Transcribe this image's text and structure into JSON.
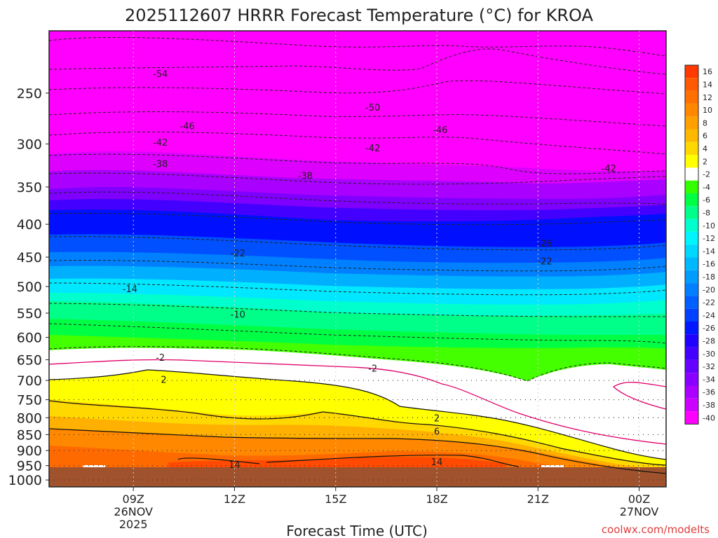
{
  "chart_data": {
    "type": "heatmap",
    "title": "2025112607 HRRR Forecast Temperature (°C) for KROA",
    "xlabel": "Forecast Time (UTC)",
    "ylabel": "",
    "credit": "coolwx.com/modelts",
    "x_range_hours": [
      6.5,
      24.8
    ],
    "x_ticks": [
      {
        "hour": 9,
        "label": "09Z",
        "date": "26NOV",
        "year": "2025"
      },
      {
        "hour": 12,
        "label": "12Z"
      },
      {
        "hour": 15,
        "label": "15Z"
      },
      {
        "hour": 18,
        "label": "18Z"
      },
      {
        "hour": 21,
        "label": "21Z"
      },
      {
        "hour": 24,
        "label": "00Z",
        "date": "27NOV"
      }
    ],
    "y_range_hpa": [
      200,
      1025
    ],
    "y_ticks": [
      250,
      300,
      350,
      400,
      450,
      500,
      550,
      600,
      650,
      700,
      750,
      800,
      850,
      900,
      950,
      1000
    ],
    "surface_pressure_hpa": 978,
    "colorbar_labels": [
      "16",
      "14",
      "12",
      "10",
      "8",
      "6",
      "4",
      "2",
      "-2",
      "-4",
      "-6",
      "-8",
      "-10",
      "-12",
      "-14",
      "-16",
      "-18",
      "-20",
      "-22",
      "-24",
      "-26",
      "-28",
      "-30",
      "-32",
      "-34",
      "-36",
      "-38",
      "-40"
    ],
    "colorbar_colors": [
      "#ff3a00",
      "#ff5a00",
      "#ff7000",
      "#ff8800",
      "#ffa000",
      "#ffb800",
      "#ffd800",
      "#ffff00",
      "#ffffff",
      "#33ff00",
      "#00ff44",
      "#00ff8a",
      "#00ffcc",
      "#00f5ff",
      "#00d8ff",
      "#00b8ff",
      "#009cff",
      "#0080ff",
      "#0060ff",
      "#0040ff",
      "#0018ff",
      "#2000ff",
      "#4400ff",
      "#6600ff",
      "#8800ff",
      "#aa00ff",
      "#cc00ff",
      "#ff00ff"
    ],
    "pressure_profiles": [
      {
        "hpa": 250,
        "temps": [
          -53,
          -53,
          -54,
          -54,
          -54,
          -52,
          -50,
          -48
        ]
      },
      {
        "hpa": 300,
        "temps": [
          -43,
          -43,
          -44,
          -43,
          -42,
          -42,
          -43,
          -44
        ]
      },
      {
        "hpa": 350,
        "temps": [
          -35,
          -36,
          -37,
          -37,
          -36,
          -36,
          -37,
          -37
        ]
      },
      {
        "hpa": 400,
        "temps": [
          -28,
          -29,
          -29,
          -29,
          -28,
          -28,
          -28,
          -28
        ]
      },
      {
        "hpa": 450,
        "temps": [
          -23,
          -23,
          -23,
          -23,
          -22,
          -22,
          -22,
          -21
        ]
      },
      {
        "hpa": 500,
        "temps": [
          -17,
          -17,
          -17,
          -16,
          -15,
          -15,
          -15,
          -15
        ]
      },
      {
        "hpa": 550,
        "temps": [
          -11,
          -11,
          -11,
          -11,
          -11,
          -11,
          -11,
          -11
        ]
      },
      {
        "hpa": 600,
        "temps": [
          -7,
          -7,
          -7,
          -6,
          -6,
          -6,
          -6,
          -6
        ]
      },
      {
        "hpa": 650,
        "temps": [
          -2,
          -2,
          -2,
          -3,
          -3,
          -3,
          -3,
          -3
        ]
      },
      {
        "hpa": 700,
        "temps": [
          2,
          2,
          1,
          0,
          -1,
          -2,
          -3,
          -2
        ]
      },
      {
        "hpa": 750,
        "temps": [
          4,
          3,
          3,
          2,
          1,
          0,
          -1,
          -1
        ]
      },
      {
        "hpa": 800,
        "temps": [
          6,
          6,
          5,
          4,
          3,
          2,
          1,
          0
        ]
      },
      {
        "hpa": 850,
        "temps": [
          8,
          8,
          7,
          7,
          6,
          5,
          3,
          2
        ]
      },
      {
        "hpa": 900,
        "temps": [
          11,
          11,
          10,
          10,
          10,
          9,
          7,
          6
        ]
      },
      {
        "hpa": 950,
        "temps": [
          13,
          13,
          13,
          13,
          14,
          13,
          11,
          9
        ]
      }
    ],
    "profile_hours": [
      7,
      9.5,
      12,
      14.5,
      17,
      19.5,
      22,
      24.5
    ],
    "isotherm_labels": [
      {
        "v": "-54",
        "h": 9.8,
        "p": 233
      },
      {
        "v": "-50",
        "h": 16.1,
        "p": 263
      },
      {
        "v": "-46",
        "h": 10.6,
        "p": 281
      },
      {
        "v": "-46",
        "h": 18.1,
        "p": 285
      },
      {
        "v": "-42",
        "h": 9.8,
        "p": 298
      },
      {
        "v": "-42",
        "h": 16.1,
        "p": 304
      },
      {
        "v": "-42",
        "h": 23.1,
        "p": 327
      },
      {
        "v": "-38",
        "h": 9.8,
        "p": 322
      },
      {
        "v": "-38",
        "h": 14.1,
        "p": 336
      },
      {
        "v": "-26",
        "h": 21.2,
        "p": 428
      },
      {
        "v": "-22",
        "h": 12.1,
        "p": 443
      },
      {
        "v": "-22",
        "h": 21.2,
        "p": 456
      },
      {
        "v": "-14",
        "h": 8.9,
        "p": 504
      },
      {
        "v": "-10",
        "h": 12.1,
        "p": 552
      },
      {
        "v": "-2",
        "h": 9.8,
        "p": 644
      },
      {
        "v": "-2",
        "h": 16.1,
        "p": 670
      },
      {
        "v": "2",
        "h": 9.9,
        "p": 697
      },
      {
        "v": "2",
        "h": 18.0,
        "p": 800
      },
      {
        "v": "6",
        "h": 18.0,
        "p": 840
      },
      {
        "v": "14",
        "h": 12.0,
        "p": 946
      },
      {
        "v": "14",
        "h": 18.0,
        "p": 937
      }
    ]
  }
}
